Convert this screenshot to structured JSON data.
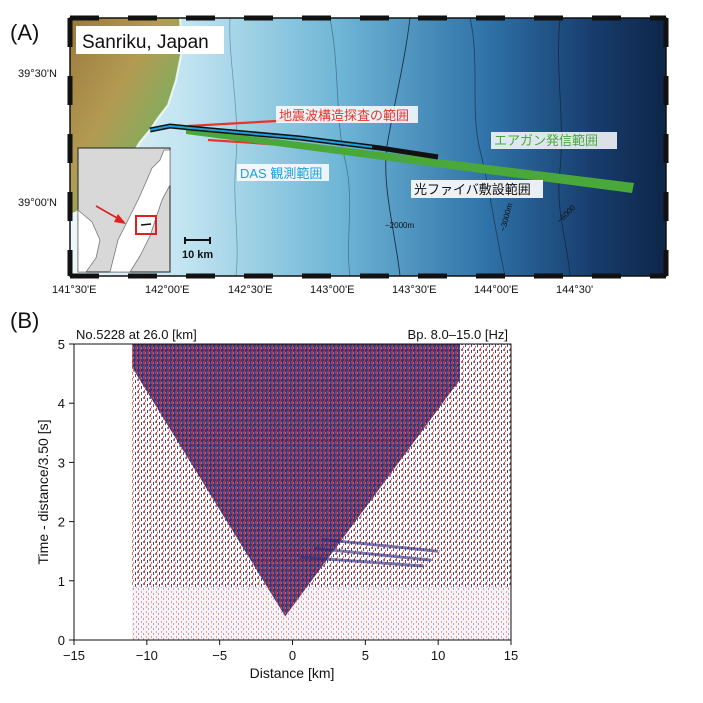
{
  "panel_a": {
    "label": "(A)",
    "title": "Sanriku, Japan",
    "lat_ticks": [
      "39°30'N",
      "39°00'N"
    ],
    "lon_ticks": [
      "141°30'E",
      "142°00'E",
      "142°30'E",
      "143°00'E",
      "143°30'E",
      "144°00'E",
      "144°30'"
    ],
    "survey_label": "地震波構造探査の範囲",
    "airgun_label": "エアガン発信範囲",
    "das_label": "DAS 観測範囲",
    "fiber_label": "光ファイバ敷設範囲",
    "contour_labels": [
      "−2000m",
      "−3000m",
      "−6000"
    ],
    "scale_label": "10 km",
    "colors": {
      "survey": "#e8352b",
      "airgun": "#4aa83a",
      "das": "#1e9fd8",
      "fiber": "#111111",
      "inset_box": "#e02020"
    }
  },
  "panel_b": {
    "label": "(B)",
    "header_left": "No.5228 at 26.0 [km]",
    "header_right": "Bp. 8.0–15.0 [Hz]",
    "xlabel": "Distance [km]",
    "ylabel": "Time - distance/3.50 [s]"
  },
  "chart_data": {
    "type": "heatmap",
    "title": "",
    "xlabel": "Distance [km]",
    "ylabel": "Time - distance/3.50 [s]",
    "xlim": [
      -15,
      15
    ],
    "ylim": [
      0,
      5
    ],
    "xticks": [
      "−15",
      "−10",
      "−5",
      "0",
      "5",
      "10",
      "15"
    ],
    "xtick_values": [
      -15,
      -10,
      -5,
      0,
      5,
      10,
      15
    ],
    "yticks": [
      "0",
      "1",
      "2",
      "3",
      "4",
      "5"
    ],
    "ytick_values": [
      0,
      1,
      2,
      3,
      4,
      5
    ],
    "data_extent_x": [
      -11,
      15
    ],
    "apex": {
      "x": -0.5,
      "y": 0.4
    },
    "colormap": [
      "#2233aa",
      "#ffffff",
      "#cc2222"
    ]
  }
}
